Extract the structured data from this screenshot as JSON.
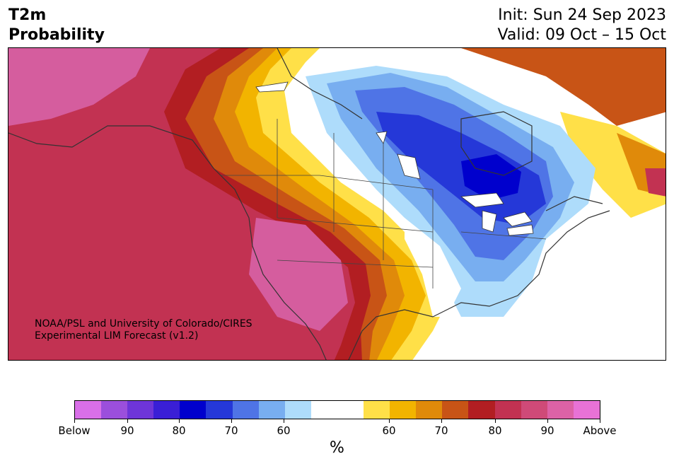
{
  "header": {
    "title_line1": "T2m",
    "title_line2": "Probability",
    "init": "Init: Sun 24 Sep 2023",
    "valid": "Valid: 09 Oct – 15 Oct"
  },
  "credit": {
    "line1": "NOAA/PSL and University of Colorado/CIRES",
    "line2": "Experimental LIM Forecast (v1.2)"
  },
  "colorbar": {
    "colors": [
      "#d96fe8",
      "#9b4fdc",
      "#6e35d8",
      "#3a1fd6",
      "#0000cd",
      "#2538d8",
      "#4f74e6",
      "#78aef0",
      "#aedcfb",
      "#ffffff",
      "#ffffff",
      "#ffe048",
      "#f2b400",
      "#e08a0a",
      "#c85416",
      "#b21e22",
      "#c23252",
      "#cf4a78",
      "#dc62a6",
      "#e872d6"
    ],
    "tick_labels": [
      "Below",
      "90",
      "80",
      "70",
      "60",
      "60",
      "70",
      "80",
      "90",
      "Above"
    ],
    "unit": "%"
  },
  "map": {
    "region": "North America",
    "colors": {
      "above_strong": "#d55d9e",
      "above_mid": "#c23252",
      "above_low": "#b21e22",
      "warm_70": "#c85416",
      "warm_65": "#e08a0a",
      "warm_60": "#f2b400",
      "warm_55": "#ffe048",
      "neutral": "#ffffff",
      "cool_55": "#aedcfb",
      "cool_60": "#78aef0",
      "cool_65": "#4f74e6",
      "cool_70": "#2538d8",
      "cool_80": "#0000cd"
    }
  }
}
